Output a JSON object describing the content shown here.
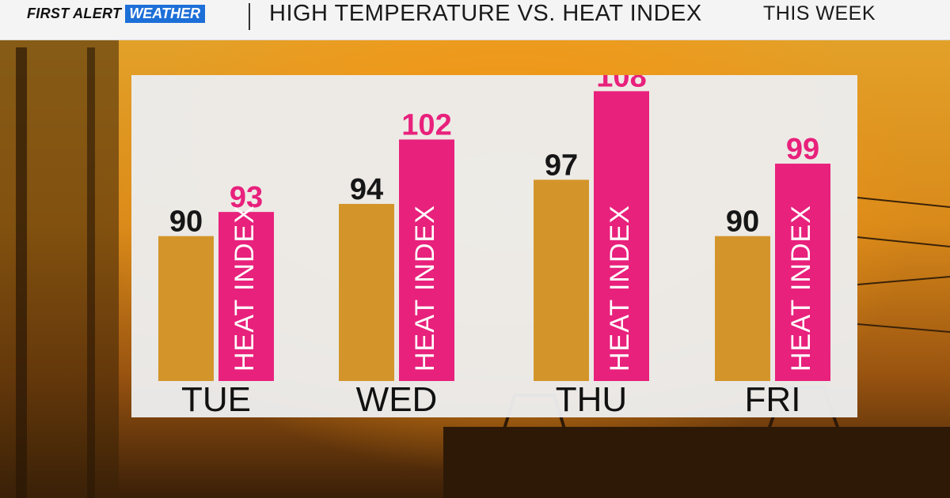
{
  "header": {
    "brand_first": "FIRST ALERT",
    "brand_weather": "WEATHER",
    "title": "HIGH TEMPERATURE VS. HEAT INDEX",
    "subtitle": "THIS WEEK"
  },
  "colors": {
    "temp_bar": "#d3952a",
    "heat_bar": "#e8217c",
    "brand_blue": "#1d6fd8"
  },
  "chart_data": {
    "type": "bar",
    "title": "HIGH TEMPERATURE VS. HEAT INDEX",
    "subtitle": "THIS WEEK",
    "categories": [
      "TUE",
      "WED",
      "THU",
      "FRI"
    ],
    "series": [
      {
        "values": [
          90,
          94,
          97,
          90
        ],
        "color": "#d3952a"
      },
      {
        "name": "HEAT INDEX",
        "values": [
          93,
          102,
          108,
          99
        ],
        "color": "#e8217c"
      }
    ],
    "ylim": [
      72,
      110
    ],
    "grid": false,
    "legend": "none"
  }
}
